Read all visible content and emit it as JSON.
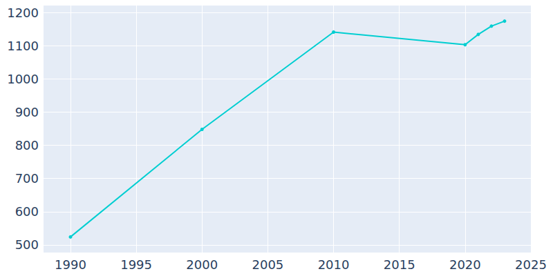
{
  "chart_data": {
    "type": "line",
    "x": [
      1990,
      2000,
      2010,
      2020,
      2021,
      2022,
      2023
    ],
    "values": [
      524,
      848,
      1141,
      1103,
      1134,
      1159,
      1174
    ],
    "color": "#00ced1",
    "marker": "circle",
    "xlim": [
      1987.9,
      2025
    ],
    "xticks": [
      1990,
      1995,
      2000,
      2005,
      2010,
      2015,
      2020,
      2025
    ],
    "ylim": [
      477,
      1221
    ],
    "yticks": [
      500,
      600,
      700,
      800,
      900,
      1000,
      1100,
      1200
    ],
    "grid": true
  }
}
